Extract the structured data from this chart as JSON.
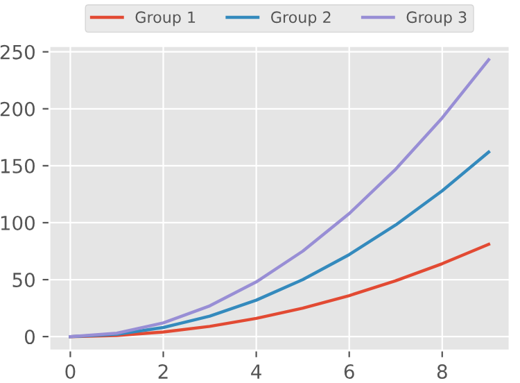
{
  "chart_data": {
    "type": "line",
    "x": [
      0,
      1,
      2,
      3,
      4,
      5,
      6,
      7,
      8,
      9
    ],
    "series": [
      {
        "name": "Group 1",
        "color": "#e24a33",
        "values": [
          0,
          1,
          4,
          9,
          16,
          25,
          36,
          49,
          64,
          81
        ]
      },
      {
        "name": "Group 2",
        "color": "#348abd",
        "values": [
          0,
          2,
          8,
          18,
          32,
          50,
          72,
          98,
          128,
          162
        ]
      },
      {
        "name": "Group 3",
        "color": "#988ed5",
        "values": [
          0,
          3,
          12,
          27,
          48,
          75,
          108,
          147,
          192,
          243
        ]
      }
    ],
    "xlim": [
      -0.45,
      9.45
    ],
    "xticks": [
      0,
      2,
      4,
      6,
      8
    ],
    "ylim": [
      -12.15,
      255.15
    ],
    "yticks": [
      0,
      50,
      100,
      150,
      200,
      250
    ],
    "grid": true,
    "legend": "top",
    "marker": "none",
    "line_style": "solid"
  }
}
